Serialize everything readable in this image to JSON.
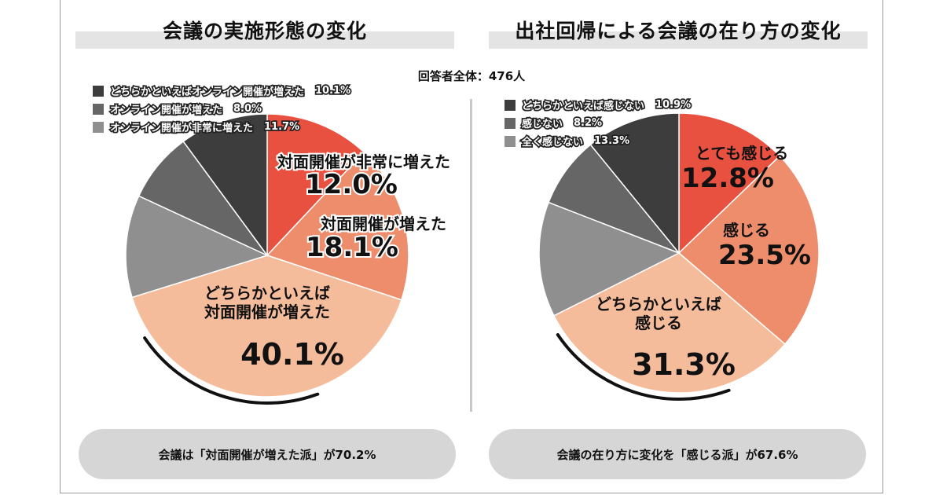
{
  "respondents": "回答者全体：476人",
  "charts": [
    {
      "title": "会議の実施形態の変化",
      "summary": "会議は「対面開催が増えた派」が70.2%",
      "legend": [
        {
          "label": "どちらかといえばオンライン開催が増えた",
          "pct": "10.1%",
          "color": "#3d3d3d"
        },
        {
          "label": "オンライン開催が増えた",
          "pct": "8.0%",
          "color": "#666666"
        },
        {
          "label": "オンライン開催が非常に増えた",
          "pct": "11.7%",
          "color": "#8f8f8f"
        }
      ]
    },
    {
      "title": "出社回帰による会議の在り方の変化",
      "summary": "会議の在り方に変化を「感じる派」が67.6%",
      "legend": [
        {
          "label": "どちらかといえば感じない",
          "pct": "10.9%",
          "color": "#3d3d3d"
        },
        {
          "label": "感じない",
          "pct": "8.2%",
          "color": "#666666"
        },
        {
          "label": "全く感じない",
          "pct": "13.3%",
          "color": "#8f8f8f"
        }
      ]
    }
  ],
  "chart_data": [
    {
      "type": "pie",
      "title": "会議の実施形態の変化",
      "slices": [
        {
          "label": "対面開催が非常に増えた",
          "value": 12.0,
          "display": "12.0%",
          "color": "#e8513f"
        },
        {
          "label": "対面開催が増えた",
          "value": 18.1,
          "display": "18.1%",
          "color": "#ee8d6c"
        },
        {
          "label": "どちらかといえば\n対面開催が増えた",
          "value": 40.1,
          "display": "40.1%",
          "color": "#f5bc9b"
        },
        {
          "label": "オンライン開催が非常に増えた",
          "value": 11.7,
          "display": "11.7%",
          "color": "#8f8f8f"
        },
        {
          "label": "オンライン開催が増えた",
          "value": 8.0,
          "display": "8.0%",
          "color": "#666666"
        },
        {
          "label": "どちらかといえばオンライン開催が増えた",
          "value": 10.1,
          "display": "10.1%",
          "color": "#3d3d3d"
        }
      ]
    },
    {
      "type": "pie",
      "title": "出社回帰による会議の在り方の変化",
      "slices": [
        {
          "label": "とても感じる",
          "value": 12.8,
          "display": "12.8%",
          "color": "#e8513f"
        },
        {
          "label": "感じる",
          "value": 23.5,
          "display": "23.5%",
          "color": "#ee8d6c"
        },
        {
          "label": "どちらかといえば\n感じる",
          "value": 31.3,
          "display": "31.3%",
          "color": "#f5bc9b"
        },
        {
          "label": "全く感じない",
          "value": 13.3,
          "display": "13.3%",
          "color": "#8f8f8f"
        },
        {
          "label": "感じない",
          "value": 8.2,
          "display": "8.2%",
          "color": "#666666"
        },
        {
          "label": "どちらかといえば感じない",
          "value": 10.9,
          "display": "10.9%",
          "color": "#3d3d3d"
        }
      ]
    }
  ]
}
